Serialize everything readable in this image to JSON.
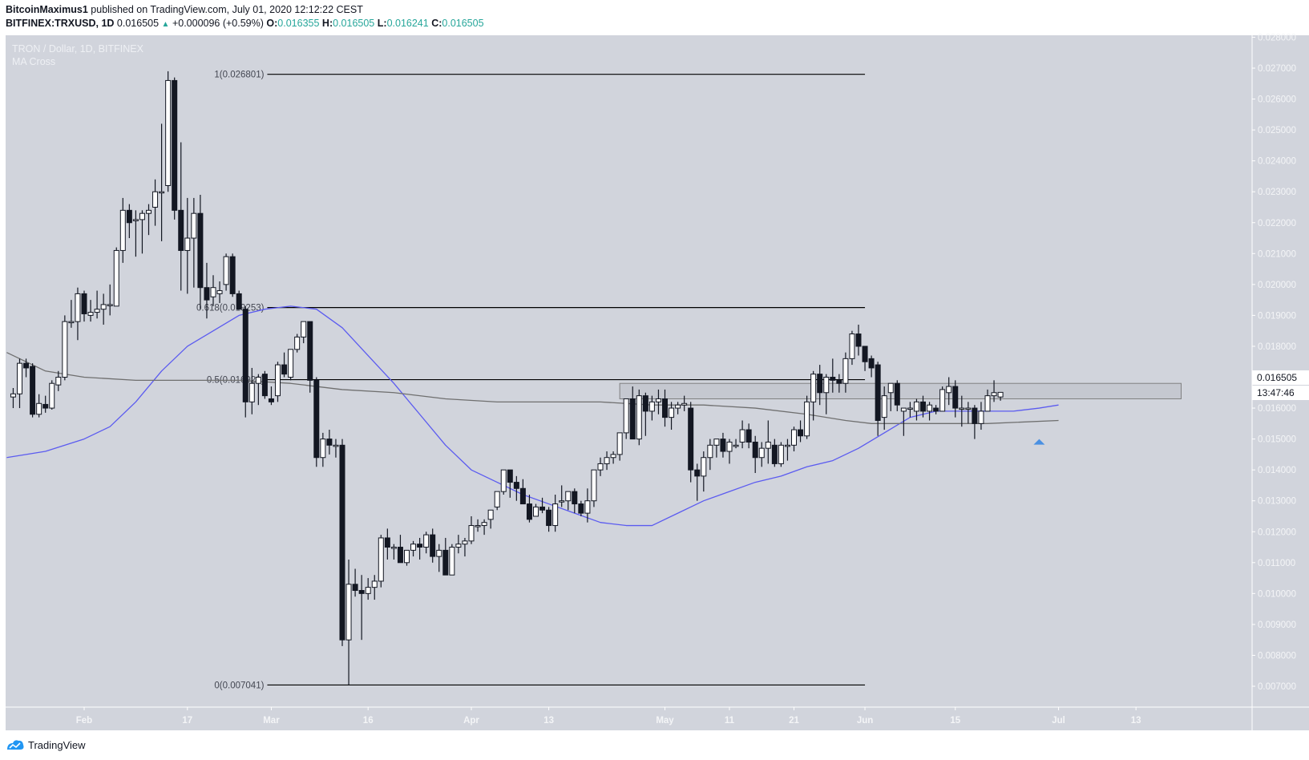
{
  "header": {
    "author": "BitcoinMaximus1",
    "published_text": "published on TradingView.com, July 01, 2020 12:12:22 CEST",
    "symbol": "BITFINEX:TRXUSD, 1D",
    "last_price": "0.016505",
    "change_icon": "triangle-up-icon",
    "change": "+0.000096 (+0.59%)",
    "open_label": "O:",
    "open": "0.016355",
    "high_label": "H:",
    "high": "0.016505",
    "low_label": "L:",
    "low": "0.016241",
    "close_label": "C:",
    "close": "0.016505"
  },
  "legend": {
    "title": "TRON / Dollar, 1D, BITFINEX",
    "indicator": "MA Cross"
  },
  "price_axis": {
    "current_price_label": "0.016505",
    "countdown_label": "13:47:46"
  },
  "footer": {
    "logo_icon": "tradingview-logo-icon",
    "brand": "TradingView"
  },
  "colors": {
    "background": "#d1d4dc",
    "candle_up": "#ffffff",
    "candle_down": "#131722",
    "ma_fast": "#5b5bf0",
    "ma_slow": "#6f6f6f",
    "fib_line": "#000000",
    "rect_zone": "#c5c8d0",
    "arrow_marker": "#4a90e2",
    "axis_text": "#f4f5f7",
    "teal": "#26a69a"
  },
  "chart_data": {
    "type": "candlestick",
    "title": "TRON / Dollar, 1D, BITFINEX",
    "symbol": "BITFINEX:TRXUSD",
    "interval": "1D",
    "ylim": [
      0.0068,
      0.0283
    ],
    "y_ticks": [
      "0.028000",
      "0.027000",
      "0.026000",
      "0.025000",
      "0.024000",
      "0.023000",
      "0.022000",
      "0.021000",
      "0.020000",
      "0.019000",
      "0.018000",
      "0.017000",
      "0.016000",
      "0.015000",
      "0.014000",
      "0.013000",
      "0.012000",
      "0.011000",
      "0.010000",
      "0.009000",
      "0.008000",
      "0.007000"
    ],
    "x_ticks": [
      {
        "label": "Feb",
        "day": 0
      },
      {
        "label": "17",
        "day": 16
      },
      {
        "label": "Mar",
        "day": 29
      },
      {
        "label": "16",
        "day": 44
      },
      {
        "label": "Apr",
        "day": 60
      },
      {
        "label": "13",
        "day": 72
      },
      {
        "label": "May",
        "day": 90
      },
      {
        "label": "11",
        "day": 100
      },
      {
        "label": "21",
        "day": 110
      },
      {
        "label": "Jun",
        "day": 121
      },
      {
        "label": "15",
        "day": 135
      },
      {
        "label": "Jul",
        "day": 151
      },
      {
        "label": "13",
        "day": 163
      }
    ],
    "first_candle_day": -11,
    "ohlc": [
      [
        0.01636,
        0.01665,
        0.016,
        0.01646
      ],
      [
        0.01646,
        0.0176,
        0.016,
        0.01745
      ],
      [
        0.01745,
        0.0176,
        0.017,
        0.0173
      ],
      [
        0.01735,
        0.01745,
        0.0157,
        0.0158
      ],
      [
        0.0158,
        0.01645,
        0.0157,
        0.01615
      ],
      [
        0.01612,
        0.0164,
        0.01585,
        0.016
      ],
      [
        0.016,
        0.0169,
        0.01595,
        0.0168
      ],
      [
        0.01675,
        0.0172,
        0.01655,
        0.017
      ],
      [
        0.017,
        0.019,
        0.0169,
        0.0188
      ],
      [
        0.0188,
        0.0195,
        0.0186,
        0.0188
      ],
      [
        0.0188,
        0.0199,
        0.0182,
        0.0197
      ],
      [
        0.0197,
        0.0198,
        0.0188,
        0.01905
      ],
      [
        0.019,
        0.0195,
        0.0188,
        0.0191
      ],
      [
        0.0191,
        0.0198,
        0.0189,
        0.0192
      ],
      [
        0.0192,
        0.0197,
        0.0187,
        0.01935
      ],
      [
        0.01935,
        0.02,
        0.019,
        0.01935
      ],
      [
        0.0193,
        0.0212,
        0.0193,
        0.0211
      ],
      [
        0.0211,
        0.0228,
        0.0207,
        0.0224
      ],
      [
        0.0224,
        0.0226,
        0.0215,
        0.022
      ],
      [
        0.0221,
        0.0224,
        0.0209,
        0.0221
      ],
      [
        0.0221,
        0.0224,
        0.021,
        0.0223
      ],
      [
        0.0223,
        0.0226,
        0.0216,
        0.0224
      ],
      [
        0.0225,
        0.0234,
        0.0219,
        0.023
      ],
      [
        0.023,
        0.0252,
        0.0214,
        0.023
      ],
      [
        0.0232,
        0.0269,
        0.023,
        0.0266
      ],
      [
        0.0266,
        0.0267,
        0.0221,
        0.0224
      ],
      [
        0.0224,
        0.0246,
        0.0198,
        0.0211
      ],
      [
        0.0211,
        0.0228,
        0.0197,
        0.0215
      ],
      [
        0.0215,
        0.0228,
        0.0199,
        0.0223
      ],
      [
        0.0223,
        0.0229,
        0.0192,
        0.0199
      ],
      [
        0.0199,
        0.0207,
        0.0189,
        0.0195
      ],
      [
        0.0196,
        0.0203,
        0.0193,
        0.0199
      ],
      [
        0.0197,
        0.0201,
        0.0194,
        0.0198
      ],
      [
        0.02,
        0.021,
        0.0198,
        0.0209
      ],
      [
        0.0209,
        0.021,
        0.0196,
        0.0197
      ],
      [
        0.0197,
        0.0198,
        0.0192,
        0.0192
      ],
      [
        0.0192,
        0.0193,
        0.0157,
        0.0162
      ],
      [
        0.0162,
        0.0173,
        0.0158,
        0.0168
      ],
      [
        0.0168,
        0.0171,
        0.0161,
        0.017
      ],
      [
        0.0171,
        0.0172,
        0.0163,
        0.0164
      ],
      [
        0.0163,
        0.0167,
        0.0161,
        0.0162
      ],
      [
        0.0164,
        0.0175,
        0.0162,
        0.0174
      ],
      [
        0.0174,
        0.0178,
        0.017,
        0.0171
      ],
      [
        0.017,
        0.0179,
        0.0169,
        0.0179
      ],
      [
        0.0179,
        0.0184,
        0.0178,
        0.0183
      ],
      [
        0.0183,
        0.0185,
        0.0181,
        0.0188
      ],
      [
        0.0188,
        0.0188,
        0.0165,
        0.0169
      ],
      [
        0.0169,
        0.017,
        0.0141,
        0.0144
      ],
      [
        0.0144,
        0.0152,
        0.0141,
        0.015
      ],
      [
        0.015,
        0.0153,
        0.0145,
        0.0148
      ],
      [
        0.0148,
        0.015,
        0.0144,
        0.0148
      ],
      [
        0.0148,
        0.015,
        0.0083,
        0.0085
      ],
      [
        0.0085,
        0.0111,
        0.00705,
        0.0103
      ],
      [
        0.0103,
        0.0108,
        0.0099,
        0.0101
      ],
      [
        0.0101,
        0.0106,
        0.0085,
        0.01
      ],
      [
        0.01,
        0.0105,
        0.0098,
        0.0102
      ],
      [
        0.0102,
        0.0106,
        0.0098,
        0.0104
      ],
      [
        0.0104,
        0.0119,
        0.0102,
        0.0118
      ],
      [
        0.0118,
        0.0121,
        0.0111,
        0.0115
      ],
      [
        0.0115,
        0.0116,
        0.0111,
        0.0115
      ],
      [
        0.0115,
        0.0119,
        0.0112,
        0.011
      ],
      [
        0.011,
        0.0113,
        0.0109,
        0.0114
      ],
      [
        0.0114,
        0.0117,
        0.0112,
        0.0116
      ],
      [
        0.0116,
        0.0118,
        0.0111,
        0.0115
      ],
      [
        0.0115,
        0.012,
        0.0113,
        0.0119
      ],
      [
        0.0119,
        0.0121,
        0.011,
        0.0112
      ],
      [
        0.0112,
        0.0116,
        0.0107,
        0.0114
      ],
      [
        0.0114,
        0.0118,
        0.0112,
        0.0106
      ],
      [
        0.0106,
        0.0116,
        0.0106,
        0.0115
      ],
      [
        0.0115,
        0.0119,
        0.0113,
        0.0116
      ],
      [
        0.0116,
        0.0118,
        0.0112,
        0.0117
      ],
      [
        0.0117,
        0.0125,
        0.0116,
        0.0122
      ],
      [
        0.0122,
        0.0124,
        0.012,
        0.0122
      ],
      [
        0.0122,
        0.0124,
        0.0119,
        0.0123
      ],
      [
        0.0124,
        0.0127,
        0.0121,
        0.0127
      ],
      [
        0.0128,
        0.0133,
        0.0127,
        0.0133
      ],
      [
        0.0133,
        0.014,
        0.0132,
        0.014
      ],
      [
        0.014,
        0.014,
        0.0131,
        0.0136
      ],
      [
        0.0136,
        0.0138,
        0.013,
        0.0134
      ],
      [
        0.0134,
        0.0137,
        0.013,
        0.0129
      ],
      [
        0.0129,
        0.0132,
        0.0123,
        0.0124
      ],
      [
        0.0125,
        0.0129,
        0.0125,
        0.0128
      ],
      [
        0.0128,
        0.0131,
        0.0126,
        0.0127
      ],
      [
        0.0127,
        0.0128,
        0.012,
        0.0122
      ],
      [
        0.0122,
        0.0132,
        0.012,
        0.0129
      ],
      [
        0.013,
        0.0135,
        0.0128,
        0.013
      ],
      [
        0.013,
        0.0132,
        0.0127,
        0.0133
      ],
      [
        0.0133,
        0.0134,
        0.0126,
        0.0129
      ],
      [
        0.0129,
        0.013,
        0.0125,
        0.0126
      ],
      [
        0.0126,
        0.0134,
        0.0123,
        0.013
      ],
      [
        0.013,
        0.0138,
        0.0128,
        0.014
      ],
      [
        0.014,
        0.0144,
        0.0138,
        0.0142
      ],
      [
        0.0142,
        0.0146,
        0.014,
        0.0144
      ],
      [
        0.0144,
        0.0146,
        0.0142,
        0.0145
      ],
      [
        0.0145,
        0.0152,
        0.0143,
        0.0152
      ],
      [
        0.0152,
        0.0157,
        0.015,
        0.0163
      ],
      [
        0.0163,
        0.0167,
        0.015,
        0.015
      ],
      [
        0.015,
        0.0166,
        0.0148,
        0.0164
      ],
      [
        0.0164,
        0.0165,
        0.0151,
        0.0159
      ],
      [
        0.0159,
        0.0164,
        0.0156,
        0.0162
      ],
      [
        0.0162,
        0.0166,
        0.0158,
        0.0163
      ],
      [
        0.0163,
        0.0166,
        0.0154,
        0.0157
      ],
      [
        0.0157,
        0.0162,
        0.0153,
        0.016
      ],
      [
        0.016,
        0.0162,
        0.0158,
        0.0161
      ],
      [
        0.0161,
        0.0164,
        0.0159,
        0.01615
      ],
      [
        0.016,
        0.0162,
        0.0136,
        0.014
      ],
      [
        0.014,
        0.0142,
        0.013,
        0.0138
      ],
      [
        0.0138,
        0.0146,
        0.0133,
        0.0144
      ],
      [
        0.0144,
        0.015,
        0.014,
        0.0148
      ],
      [
        0.0148,
        0.015,
        0.0144,
        0.015
      ],
      [
        0.015,
        0.0152,
        0.0144,
        0.0146
      ],
      [
        0.0146,
        0.015,
        0.0142,
        0.0149
      ],
      [
        0.0148,
        0.015,
        0.0147,
        0.0148
      ],
      [
        0.0149,
        0.0156,
        0.0147,
        0.0153
      ],
      [
        0.0153,
        0.0155,
        0.0147,
        0.0149
      ],
      [
        0.0149,
        0.0151,
        0.0139,
        0.0144
      ],
      [
        0.0144,
        0.0149,
        0.0141,
        0.0147
      ],
      [
        0.0147,
        0.0156,
        0.0142,
        0.0149
      ],
      [
        0.0148,
        0.015,
        0.0141,
        0.0142
      ],
      [
        0.0142,
        0.0149,
        0.0141,
        0.0148
      ],
      [
        0.0148,
        0.015,
        0.0143,
        0.0148
      ],
      [
        0.0148,
        0.0154,
        0.0146,
        0.0153
      ],
      [
        0.0153,
        0.0156,
        0.0149,
        0.0151
      ],
      [
        0.0151,
        0.0164,
        0.015,
        0.0162
      ],
      [
        0.0162,
        0.0172,
        0.0156,
        0.0171
      ],
      [
        0.0171,
        0.0174,
        0.0161,
        0.0165
      ],
      [
        0.0165,
        0.0171,
        0.0158,
        0.017
      ],
      [
        0.017,
        0.0176,
        0.0165,
        0.0169
      ],
      [
        0.0169,
        0.0171,
        0.0165,
        0.0168
      ],
      [
        0.0168,
        0.0178,
        0.0165,
        0.0176
      ],
      [
        0.0176,
        0.0185,
        0.0174,
        0.0184
      ],
      [
        0.0184,
        0.0187,
        0.0177,
        0.018
      ],
      [
        0.018,
        0.018,
        0.0172,
        0.0175
      ],
      [
        0.0176,
        0.0177,
        0.017,
        0.0173
      ],
      [
        0.0174,
        0.0175,
        0.0151,
        0.0156
      ],
      [
        0.0157,
        0.0167,
        0.0153,
        0.0164
      ],
      [
        0.0165,
        0.0168,
        0.0159,
        0.0168
      ],
      [
        0.0168,
        0.0169,
        0.0159,
        0.0161
      ],
      [
        0.0159,
        0.016,
        0.0151,
        0.016
      ],
      [
        0.016,
        0.0162,
        0.0157,
        0.016
      ],
      [
        0.0159,
        0.0163,
        0.0156,
        0.0162
      ],
      [
        0.0162,
        0.0164,
        0.0157,
        0.0159
      ],
      [
        0.0159,
        0.0162,
        0.0156,
        0.0161
      ],
      [
        0.016,
        0.0161,
        0.0158,
        0.0159
      ],
      [
        0.0159,
        0.0167,
        0.0159,
        0.0166
      ],
      [
        0.0165,
        0.017,
        0.0161,
        0.0167
      ],
      [
        0.0167,
        0.0169,
        0.0157,
        0.016
      ],
      [
        0.016,
        0.0164,
        0.0154,
        0.016
      ],
      [
        0.016,
        0.0162,
        0.0155,
        0.016
      ],
      [
        0.016,
        0.0161,
        0.015,
        0.0155
      ],
      [
        0.0155,
        0.0162,
        0.0153,
        0.0159
      ],
      [
        0.0159,
        0.0166,
        0.0159,
        0.0164
      ],
      [
        0.0164,
        0.0169,
        0.0162,
        0.0165
      ],
      [
        0.01636,
        0.01651,
        0.01624,
        0.01651
      ]
    ],
    "series": [
      {
        "name": "MA fast (blue)",
        "color": "#5b5bf0",
        "points": [
          [
            -12,
            0.0144
          ],
          [
            -6,
            0.0146
          ],
          [
            0,
            0.015
          ],
          [
            4,
            0.0154
          ],
          [
            8,
            0.0162
          ],
          [
            12,
            0.0172
          ],
          [
            16,
            0.018
          ],
          [
            20,
            0.0185
          ],
          [
            24,
            0.019
          ],
          [
            28,
            0.0192
          ],
          [
            32,
            0.0193
          ],
          [
            36,
            0.0192
          ],
          [
            40,
            0.0186
          ],
          [
            44,
            0.0177
          ],
          [
            48,
            0.0168
          ],
          [
            52,
            0.0158
          ],
          [
            56,
            0.0148
          ],
          [
            60,
            0.014
          ],
          [
            64,
            0.0136
          ],
          [
            68,
            0.0132
          ],
          [
            72,
            0.0129
          ],
          [
            76,
            0.0126
          ],
          [
            80,
            0.0123
          ],
          [
            84,
            0.0122
          ],
          [
            88,
            0.0122
          ],
          [
            92,
            0.0126
          ],
          [
            96,
            0.013
          ],
          [
            100,
            0.0133
          ],
          [
            104,
            0.0136
          ],
          [
            108,
            0.0138
          ],
          [
            112,
            0.0141
          ],
          [
            116,
            0.0143
          ],
          [
            120,
            0.0147
          ],
          [
            124,
            0.0152
          ],
          [
            128,
            0.0157
          ],
          [
            132,
            0.0159
          ],
          [
            136,
            0.0159
          ],
          [
            140,
            0.0159
          ],
          [
            144,
            0.0159
          ],
          [
            148,
            0.016
          ],
          [
            151,
            0.0161
          ]
        ]
      },
      {
        "name": "MA slow (grey)",
        "color": "#6f6f6f",
        "points": [
          [
            -12,
            0.0178
          ],
          [
            -6,
            0.0172
          ],
          [
            0,
            0.017
          ],
          [
            8,
            0.0169
          ],
          [
            16,
            0.0169
          ],
          [
            24,
            0.0169
          ],
          [
            32,
            0.0168
          ],
          [
            40,
            0.0166
          ],
          [
            48,
            0.0165
          ],
          [
            56,
            0.0163
          ],
          [
            64,
            0.0162
          ],
          [
            72,
            0.0162
          ],
          [
            80,
            0.0162
          ],
          [
            88,
            0.0161
          ],
          [
            96,
            0.0161
          ],
          [
            104,
            0.016
          ],
          [
            112,
            0.0158
          ],
          [
            118,
            0.0156
          ],
          [
            122,
            0.0155
          ],
          [
            130,
            0.0155
          ],
          [
            140,
            0.0155
          ],
          [
            151,
            0.0156
          ]
        ]
      }
    ],
    "fib_levels": [
      {
        "label": "1(0.026801)",
        "value": 0.026801
      },
      {
        "label": "0.618(0.019253)",
        "value": 0.019253
      },
      {
        "label": "0.5(0.016921)",
        "value": 0.016921
      },
      {
        "label": "0(0.007041)",
        "value": 0.007041
      }
    ],
    "fib_x_range_days": [
      29,
      121
    ],
    "resistance_zone": {
      "top": 0.0168,
      "bottom": 0.0163,
      "start_day": 83,
      "end_day": 170
    },
    "annotations": [
      {
        "type": "arrow-up",
        "day": 148,
        "price": 0.015
      }
    ]
  }
}
